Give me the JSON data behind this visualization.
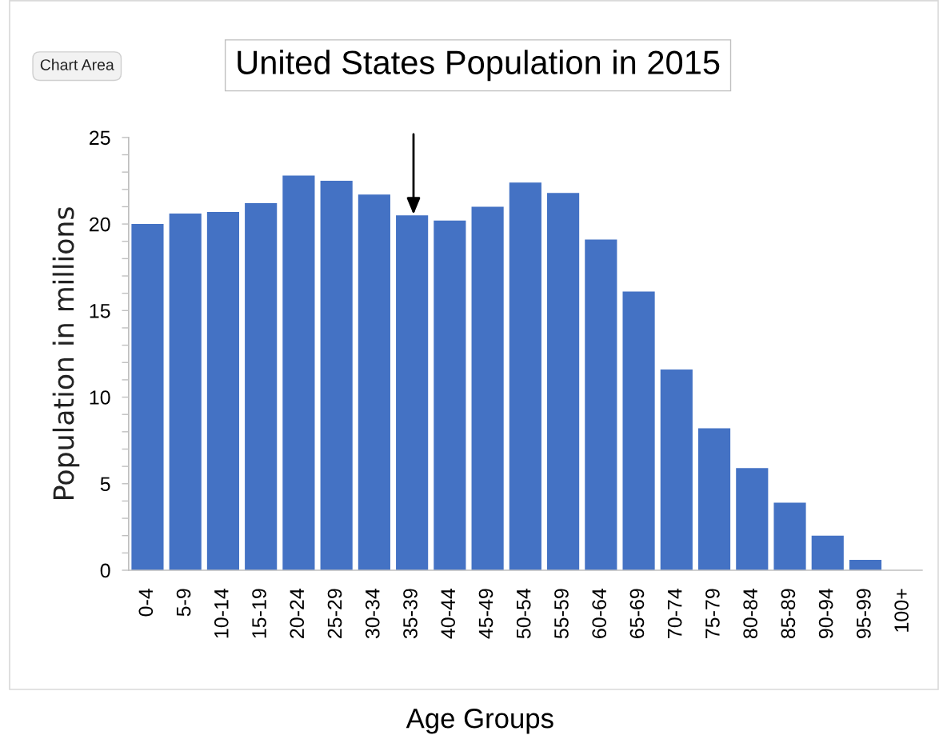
{
  "chart_data": {
    "type": "bar",
    "title": "United States Population in 2015",
    "xlabel": "Age Groups",
    "ylabel": "Population in millions",
    "categories": [
      "0-4",
      "5-9",
      "10-14",
      "15-19",
      "20-24",
      "25-29",
      "30-34",
      "35-39",
      "40-44",
      "45-49",
      "50-54",
      "55-59",
      "60-64",
      "65-69",
      "70-74",
      "75-79",
      "80-84",
      "85-89",
      "90-94",
      "95-99",
      "100+"
    ],
    "values": [
      20.0,
      20.6,
      20.7,
      21.2,
      22.8,
      22.5,
      21.7,
      20.5,
      20.2,
      21.0,
      22.4,
      21.8,
      19.1,
      16.1,
      11.6,
      8.2,
      5.9,
      3.9,
      2.0,
      0.6,
      0
    ],
    "color": "#4472c4",
    "ylim": [
      0,
      25
    ],
    "yticks": [
      0,
      {
        "value": 1,
        "label": null
      },
      {
        "value": 2,
        "label": null
      },
      {
        "value": 3,
        "label": null
      },
      {
        "value": 4,
        "label": null
      },
      5,
      {
        "value": 6,
        "label": null
      },
      {
        "value": 7,
        "label": null
      },
      {
        "value": 8,
        "label": null
      },
      {
        "value": 9,
        "label": null
      },
      10,
      {
        "value": 11,
        "label": null
      },
      {
        "value": 12,
        "label": null
      },
      {
        "value": 13,
        "label": null
      },
      {
        "value": 14,
        "label": null
      },
      15,
      {
        "value": 16,
        "label": null
      },
      {
        "value": 17,
        "label": null
      },
      {
        "value": 18,
        "label": null
      },
      {
        "value": 19,
        "label": null
      },
      20,
      {
        "value": 21,
        "label": null
      },
      {
        "value": 22,
        "label": null
      },
      {
        "value": 23,
        "label": null
      },
      {
        "value": 24,
        "label": null
      },
      25
    ],
    "annotations": [
      "Chart Area"
    ]
  }
}
